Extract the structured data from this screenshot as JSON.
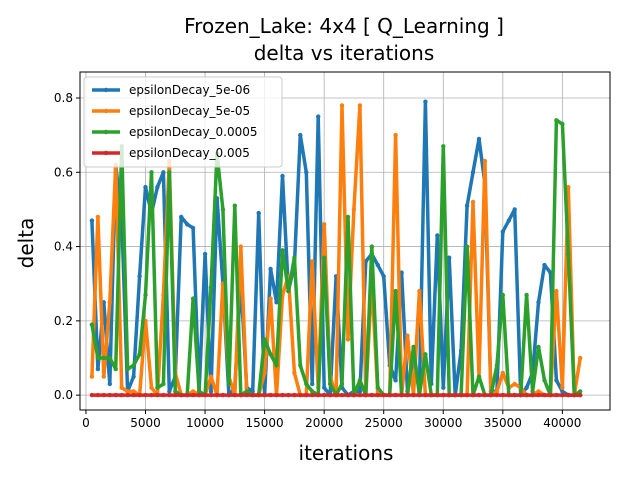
{
  "chart_data": {
    "type": "line",
    "title": "Frozen_Lake: 4x4 [ Q_Learning ]",
    "subtitle": "delta vs iterations",
    "xlabel": "iterations",
    "ylabel": "delta",
    "xlim": [
      -500,
      44000
    ],
    "ylim": [
      -0.04,
      0.87
    ],
    "xticks": [
      0,
      5000,
      10000,
      15000,
      20000,
      25000,
      30000,
      35000,
      40000
    ],
    "xtick_labels": [
      "0",
      "5000",
      "10000",
      "15000",
      "20000",
      "25000",
      "30000",
      "35000",
      "40000"
    ],
    "yticks": [
      0.0,
      0.2,
      0.4,
      0.6,
      0.8
    ],
    "ytick_labels": [
      "0.0",
      "0.2",
      "0.4",
      "0.6",
      "0.8"
    ],
    "grid": true,
    "legend_position": "top-left",
    "series": [
      {
        "name": "epsilonDecay_5e-06",
        "color": "#1f77b4",
        "x": [
          500,
          1000,
          1500,
          2000,
          2500,
          3000,
          3500,
          4000,
          4500,
          5000,
          5500,
          6000,
          6500,
          7000,
          7500,
          8000,
          8500,
          9000,
          9500,
          10000,
          10500,
          11000,
          11500,
          12000,
          12500,
          13000,
          13500,
          14000,
          14500,
          15000,
          15500,
          16000,
          16500,
          17000,
          17500,
          18000,
          18500,
          19000,
          19500,
          20000,
          20500,
          21000,
          21500,
          22000,
          22500,
          23000,
          23500,
          24000,
          24500,
          25000,
          25500,
          26000,
          26500,
          27000,
          27500,
          28000,
          28500,
          29000,
          29500,
          30000,
          30500,
          31000,
          31500,
          32000,
          32500,
          33000,
          33500,
          34000,
          34500,
          35000,
          35500,
          36000,
          36500,
          37000,
          37500,
          38000,
          38500,
          39000,
          39500,
          40000,
          40500,
          41000,
          41500
        ],
        "y": [
          0.47,
          0.07,
          0.25,
          0.03,
          0.62,
          0.48,
          0.01,
          0.05,
          0.32,
          0.56,
          0.49,
          0.56,
          0.6,
          0.01,
          0.05,
          0.48,
          0.46,
          0.45,
          0.01,
          0.38,
          0.01,
          0.53,
          0.3,
          0.0,
          0.02,
          0.31,
          0.02,
          0.01,
          0.49,
          0.0,
          0.34,
          0.25,
          0.59,
          0.28,
          0.35,
          0.7,
          0.6,
          0.03,
          0.75,
          0.02,
          0.0,
          0.32,
          0.02,
          0.0,
          0.01,
          0.01,
          0.36,
          0.38,
          0.35,
          0.32,
          0.08,
          0.04,
          0.33,
          0.01,
          0.1,
          0.01,
          0.79,
          0.03,
          0.43,
          0.02,
          0.37,
          0.0,
          0.12,
          0.51,
          0.6,
          0.69,
          0.57,
          0.01,
          0.01,
          0.44,
          0.47,
          0.5,
          0.0,
          0.02,
          0.06,
          0.25,
          0.35,
          0.33,
          0.04,
          0.01,
          0.0,
          0.0,
          0.0
        ]
      },
      {
        "name": "epsilonDecay_5e-05",
        "color": "#ff7f0e",
        "x": [
          500,
          1000,
          1500,
          2000,
          2500,
          3000,
          3500,
          4000,
          4500,
          5000,
          5500,
          6000,
          6500,
          7000,
          7500,
          8000,
          8500,
          9000,
          9500,
          10000,
          10500,
          11000,
          11500,
          12000,
          12500,
          13000,
          13500,
          14000,
          14500,
          15000,
          15500,
          16000,
          16500,
          17000,
          17500,
          18000,
          18500,
          19000,
          19500,
          20000,
          20500,
          21000,
          21500,
          22000,
          22500,
          23000,
          23500,
          24000,
          24500,
          25000,
          25500,
          26000,
          26500,
          27000,
          27500,
          28000,
          28500,
          29000,
          29500,
          30000,
          30500,
          31000,
          31500,
          32000,
          32500,
          33000,
          33500,
          34000,
          34500,
          35000,
          35500,
          36000,
          36500,
          37000,
          37500,
          38000,
          38500,
          39000,
          39500,
          40000,
          40500,
          41000,
          41500
        ],
        "y": [
          0.05,
          0.48,
          0.05,
          0.25,
          0.62,
          0.02,
          0.01,
          0.01,
          0.0,
          0.2,
          0.02,
          0.0,
          0.27,
          0.63,
          0.06,
          0.0,
          0.0,
          0.01,
          0.0,
          0.0,
          0.05,
          0.0,
          0.3,
          0.05,
          0.0,
          0.4,
          0.01,
          0.0,
          0.0,
          0.06,
          0.26,
          0.0,
          0.27,
          0.32,
          0.06,
          0.0,
          0.0,
          0.36,
          0.02,
          0.46,
          0.05,
          0.0,
          0.78,
          0.15,
          0.5,
          0.78,
          0.0,
          0.31,
          0.0,
          0.0,
          0.0,
          0.7,
          0.0,
          0.16,
          0.0,
          0.28,
          0.0,
          0.0,
          0.0,
          0.0,
          0.0,
          0.0,
          0.0,
          0.0,
          0.52,
          0.05,
          0.63,
          0.0,
          0.01,
          0.06,
          0.02,
          0.03,
          0.02,
          0.0,
          0.0,
          0.01,
          0.0,
          0.0,
          0.28,
          0.02,
          0.56,
          0.0,
          0.1
        ]
      },
      {
        "name": "epsilonDecay_0.0005",
        "color": "#2ca02c",
        "x": [
          500,
          1000,
          1500,
          2000,
          2500,
          3000,
          3500,
          4000,
          4500,
          5000,
          5500,
          6000,
          6500,
          7000,
          7500,
          8000,
          8500,
          9000,
          9500,
          10000,
          10500,
          11000,
          11500,
          12000,
          12500,
          13000,
          13500,
          14000,
          14500,
          15000,
          15500,
          16000,
          16500,
          17000,
          17500,
          18000,
          18500,
          19000,
          19500,
          20000,
          20500,
          21000,
          21500,
          22000,
          22500,
          23000,
          23500,
          24000,
          24500,
          25000,
          25500,
          26000,
          26500,
          27000,
          27500,
          28000,
          28500,
          29000,
          29500,
          30000,
          30500,
          31000,
          31500,
          32000,
          32500,
          33000,
          33500,
          34000,
          34500,
          35000,
          35500,
          36000,
          36500,
          37000,
          37500,
          38000,
          38500,
          39000,
          39500,
          40000,
          40500,
          41000,
          41500
        ],
        "y": [
          0.19,
          0.1,
          0.1,
          0.1,
          0.07,
          0.67,
          0.07,
          0.08,
          0.11,
          0.27,
          0.6,
          0.02,
          0.03,
          0.6,
          0.01,
          0.0,
          0.0,
          0.26,
          0.01,
          0.0,
          0.29,
          0.65,
          0.5,
          0.03,
          0.51,
          0.0,
          0.01,
          0.0,
          0.0,
          0.15,
          0.11,
          0.08,
          0.39,
          0.28,
          0.37,
          0.08,
          0.03,
          0.01,
          0.0,
          0.37,
          0.03,
          0.0,
          0.03,
          0.48,
          0.0,
          0.04,
          0.0,
          0.4,
          0.02,
          0.0,
          0.0,
          0.28,
          0.0,
          0.0,
          0.13,
          0.0,
          0.11,
          0.0,
          0.0,
          0.67,
          0.0,
          0.0,
          0.0,
          0.4,
          0.0,
          0.05,
          0.0,
          0.0,
          0.08,
          0.27,
          0.0,
          0.0,
          0.0,
          0.27,
          0.01,
          0.13,
          0.04,
          0.0,
          0.74,
          0.73,
          0.38,
          0.0,
          0.01
        ]
      },
      {
        "name": "epsilonDecay_0.005",
        "color": "#d62728",
        "x": [
          500,
          1000,
          1500,
          2000,
          2500,
          3000,
          3500,
          4000,
          4500,
          5000,
          5500,
          6000,
          6500,
          7000,
          7500,
          8000,
          8500,
          9000,
          9500,
          10000,
          10500,
          11000,
          11500,
          12000,
          12500,
          13000,
          13500,
          14000,
          14500,
          15000,
          15500,
          16000,
          16500,
          17000,
          17500,
          18000,
          18500,
          19000,
          19500,
          20000,
          20500,
          21000,
          21500,
          22000,
          22500,
          23000,
          23500,
          24000,
          24500,
          25000,
          25500,
          26000,
          26500,
          27000,
          27500,
          28000,
          28500,
          29000,
          29500,
          30000,
          30500,
          31000,
          31500,
          32000,
          32500,
          33000,
          33500,
          34000,
          34500,
          35000,
          35500,
          36000,
          36500,
          37000,
          37500,
          38000,
          38500,
          39000,
          39500,
          40000,
          40500,
          41000,
          41500
        ],
        "y": [
          0,
          0,
          0,
          0,
          0,
          0,
          0,
          0,
          0,
          0,
          0,
          0,
          0,
          0,
          0,
          0,
          0,
          0,
          0,
          0,
          0,
          0,
          0,
          0,
          0,
          0,
          0,
          0,
          0,
          0,
          0,
          0,
          0,
          0,
          0,
          0,
          0,
          0,
          0,
          0,
          0,
          0,
          0,
          0,
          0,
          0,
          0,
          0,
          0,
          0,
          0,
          0,
          0,
          0,
          0,
          0,
          0,
          0,
          0,
          0,
          0,
          0,
          0,
          0,
          0,
          0,
          0,
          0,
          0,
          0,
          0,
          0,
          0,
          0,
          0,
          0,
          0,
          0,
          0,
          0,
          0,
          0,
          0
        ]
      }
    ]
  }
}
